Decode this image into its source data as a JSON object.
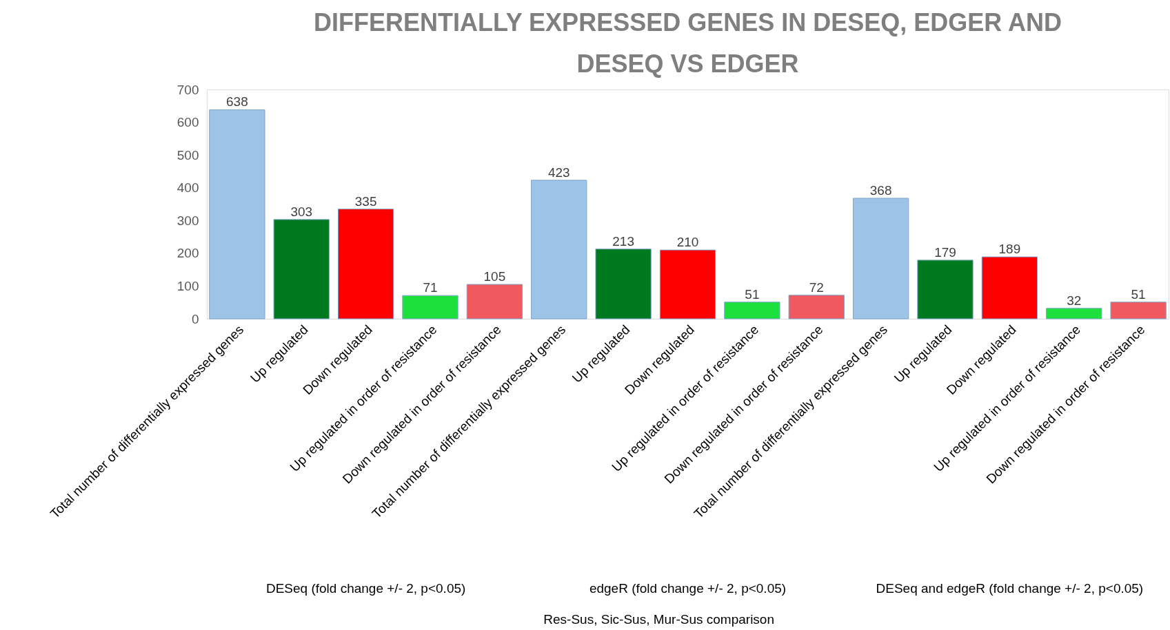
{
  "chart_data": {
    "type": "bar",
    "title": "DIFFERENTIALLY EXPRESSED GENES IN DESEQ, EDGER AND\nDESEQ VS EDGER",
    "categories": [
      "Total number of differentially expressed genes",
      "Up regulated",
      "Down regulated",
      "Up regulated in order of resistance",
      "Down regulated in order of resistance",
      "Total number of differentially expressed genes",
      "Up regulated",
      "Down regulated",
      "Up regulated in order of resistance",
      "Down regulated in order of resistance",
      "Total number of differentially expressed genes",
      "Up regulated",
      "Down regulated",
      "Up regulated in order of resistance",
      "Down regulated in order of resistance"
    ],
    "values": [
      638,
      303,
      335,
      71,
      105,
      423,
      213,
      210,
      51,
      72,
      368,
      179,
      189,
      32,
      51
    ],
    "colors": [
      "#9dc3e6",
      "#007a1e",
      "#ff0000",
      "#1ee03c",
      "#f05a5e",
      "#9dc3e6",
      "#007a1e",
      "#ff0000",
      "#1ee03c",
      "#f05a5e",
      "#9dc3e6",
      "#007a1e",
      "#ff0000",
      "#1ee03c",
      "#f05a5e"
    ],
    "ylim": [
      0,
      700
    ],
    "yticks": [
      0,
      100,
      200,
      300,
      400,
      500,
      600,
      700
    ],
    "annotations": [
      "DESeq (fold change +/- 2, p<0.05)",
      "edgeR  (fold change +/- 2, p<0.05)",
      "DESeq and edgeR (fold change +/- 2, p<0.05)",
      "Res-Sus, Sic-Sus, Mur-Sus comparison"
    ],
    "data_labels": true,
    "grid": false
  }
}
